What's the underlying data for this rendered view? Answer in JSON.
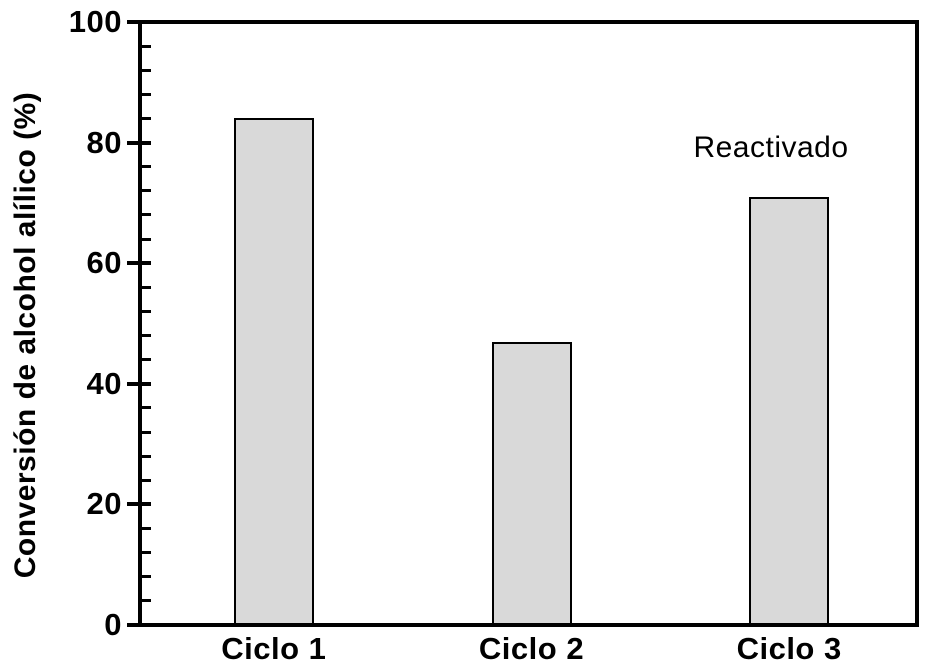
{
  "chart_data": {
    "type": "bar",
    "categories": [
      "Ciclo 1",
      "Ciclo 2",
      "Ciclo 3"
    ],
    "values": [
      84,
      47,
      71
    ],
    "title": "",
    "xlabel": "",
    "ylabel": "Conversión de alcohol alílico (%)",
    "ylim": [
      0,
      100
    ],
    "yticks": [
      0,
      20,
      40,
      60,
      80,
      100
    ],
    "minor_tick_unit": 4,
    "grid": false,
    "legend": false,
    "annotation": {
      "text": "Reactivado",
      "target": "Ciclo 3"
    },
    "colors": {
      "bar_fill": "#d9d9d9",
      "bar_border": "#000000",
      "axis": "#000000",
      "text": "#000000",
      "background": "#ffffff"
    }
  }
}
